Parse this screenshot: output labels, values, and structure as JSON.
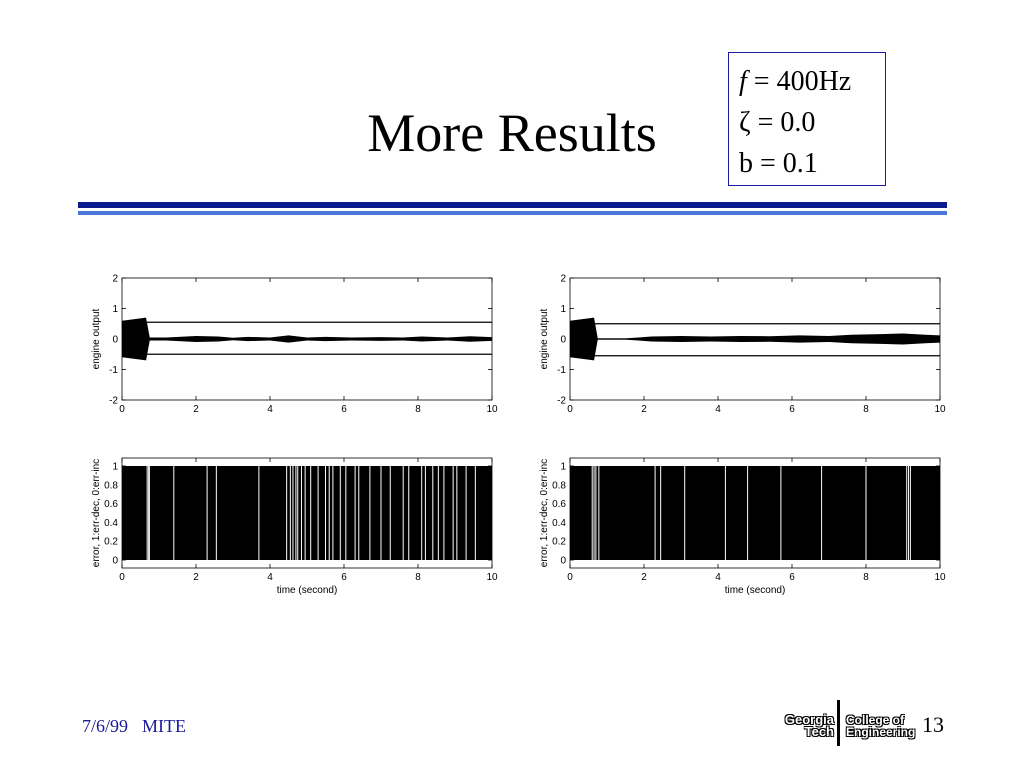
{
  "slide": {
    "title": "More Results",
    "page_number": "13"
  },
  "params": {
    "f_symbol": "f",
    "f_value": " = 400Hz",
    "zeta_symbol": "ζ",
    "zeta_value": " = 0.0",
    "b_label": "b = 0.1"
  },
  "footer": {
    "date": "7/6/99",
    "label": "MITE"
  },
  "logo": {
    "left_line1": "Georgia",
    "left_line2": "Tech",
    "right_line1": "College of",
    "right_line2": "Engineering"
  },
  "colors": {
    "rule_dark": "#0b1a8c",
    "rule_light": "#4a78d8",
    "footer_text": "#1a1a99",
    "params_border": "#1a1aa6"
  },
  "chart_data": [
    {
      "type": "line",
      "ylabel": "engine output",
      "xlabel": "",
      "xlim": [
        0,
        10
      ],
      "ylim": [
        -2,
        2
      ],
      "xticks": [
        0,
        2,
        4,
        6,
        8,
        10
      ],
      "yticks": [
        -2,
        -1,
        0,
        1,
        2
      ],
      "hlines": [
        0.55,
        -0.5
      ],
      "envelope": [
        {
          "x": 0,
          "amp": 0.6
        },
        {
          "x": 0.65,
          "amp": 0.7
        },
        {
          "x": 0.75,
          "amp": 0.05
        },
        {
          "x": 1.2,
          "amp": 0.05
        },
        {
          "x": 2.0,
          "amp": 0.1
        },
        {
          "x": 2.6,
          "amp": 0.08
        },
        {
          "x": 3.0,
          "amp": 0.04
        },
        {
          "x": 3.4,
          "amp": 0.07
        },
        {
          "x": 4.0,
          "amp": 0.05
        },
        {
          "x": 4.5,
          "amp": 0.12
        },
        {
          "x": 5.0,
          "amp": 0.05
        },
        {
          "x": 5.5,
          "amp": 0.07
        },
        {
          "x": 6.2,
          "amp": 0.05
        },
        {
          "x": 7.0,
          "amp": 0.06
        },
        {
          "x": 7.6,
          "amp": 0.05
        },
        {
          "x": 8.1,
          "amp": 0.08
        },
        {
          "x": 8.8,
          "amp": 0.05
        },
        {
          "x": 9.4,
          "amp": 0.09
        },
        {
          "x": 10,
          "amp": 0.06
        }
      ]
    },
    {
      "type": "line",
      "ylabel": "engine output",
      "xlabel": "",
      "xlim": [
        0,
        10
      ],
      "ylim": [
        -2,
        2
      ],
      "xticks": [
        0,
        2,
        4,
        6,
        8,
        10
      ],
      "yticks": [
        -2,
        -1,
        0,
        1,
        2
      ],
      "hlines": [
        0.5,
        -0.55
      ],
      "envelope": [
        {
          "x": 0,
          "amp": 0.6
        },
        {
          "x": 0.65,
          "amp": 0.7
        },
        {
          "x": 0.75,
          "amp": 0.02
        },
        {
          "x": 1.5,
          "amp": 0.02
        },
        {
          "x": 2.2,
          "amp": 0.08
        },
        {
          "x": 3.0,
          "amp": 0.1
        },
        {
          "x": 3.8,
          "amp": 0.08
        },
        {
          "x": 4.6,
          "amp": 0.1
        },
        {
          "x": 5.4,
          "amp": 0.09
        },
        {
          "x": 6.2,
          "amp": 0.12
        },
        {
          "x": 7.0,
          "amp": 0.1
        },
        {
          "x": 7.6,
          "amp": 0.14
        },
        {
          "x": 8.4,
          "amp": 0.16
        },
        {
          "x": 9.0,
          "amp": 0.18
        },
        {
          "x": 9.6,
          "amp": 0.14
        },
        {
          "x": 10,
          "amp": 0.12
        }
      ]
    },
    {
      "type": "area",
      "ylabel": "error, 1:err-dec, 0:err-inc",
      "xlabel": "time (second)",
      "xlim": [
        0,
        10
      ],
      "ylim": [
        0,
        1
      ],
      "xticks": [
        0,
        2,
        4,
        6,
        8,
        10
      ],
      "yticks": [
        0,
        0.2,
        0.4,
        0.6,
        0.8,
        1
      ],
      "fill_range": [
        0,
        10
      ],
      "gaps": [
        0.68,
        0.72,
        0.74,
        1.4,
        2.3,
        2.55,
        3.7,
        4.45,
        4.55,
        4.62,
        4.7,
        4.75,
        4.85,
        4.95,
        5.1,
        5.3,
        5.5,
        5.6,
        5.7,
        5.9,
        6.05,
        6.3,
        6.4,
        6.7,
        7.0,
        7.25,
        7.6,
        7.75,
        8.1,
        8.2,
        8.4,
        8.55,
        8.7,
        8.95,
        9.05,
        9.3,
        9.55
      ]
    },
    {
      "type": "area",
      "ylabel": "error, 1:err-dec, 0:err-inc",
      "xlabel": "time (second)",
      "xlim": [
        0,
        10
      ],
      "ylim": [
        0,
        1
      ],
      "xticks": [
        0,
        2,
        4,
        6,
        8,
        10
      ],
      "yticks": [
        0,
        0.2,
        0.4,
        0.6,
        0.8,
        1
      ],
      "fill_range": [
        0,
        10
      ],
      "gaps": [
        0.6,
        0.65,
        0.7,
        0.78,
        2.3,
        2.45,
        3.1,
        4.2,
        4.8,
        5.7,
        6.8,
        8.0,
        9.1,
        9.15,
        9.2
      ]
    }
  ]
}
